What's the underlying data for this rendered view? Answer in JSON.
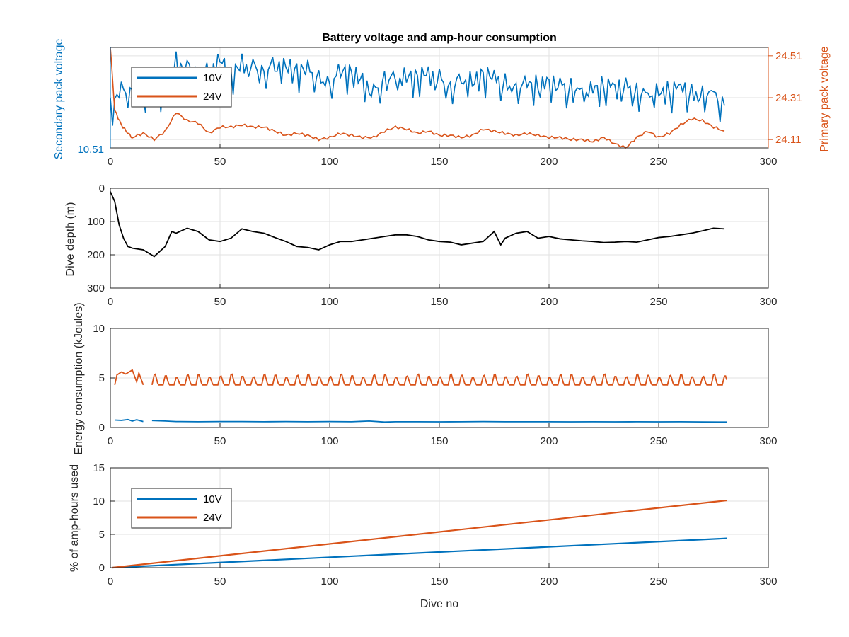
{
  "figure_title": "Battery voltage and amp-hour consumption",
  "colors": {
    "blue": "#0072BD",
    "orange": "#D95319",
    "black": "#000000",
    "grid": "#e2e2e2",
    "axis": "#262626"
  },
  "chart_data": [
    {
      "type": "line",
      "title": "Battery voltage and amp-hour consumption",
      "xlabel": "",
      "xlim": [
        0,
        300
      ],
      "xticks": [
        "0",
        "50",
        "100",
        "150",
        "200",
        "250",
        "300"
      ],
      "left_axis": {
        "label": "Secondary pack voltage",
        "tick_label": "10.51",
        "color": "#0072BD",
        "ylim": [
          10.51,
          10.56
        ]
      },
      "right_axis": {
        "label": "Primary pack voltage",
        "ticks": [
          "24.11",
          "24.31",
          "24.51"
        ],
        "color": "#D95319",
        "ylim": [
          24.07,
          24.55
        ]
      },
      "legend": {
        "placement": "top-left",
        "entries": [
          "10V",
          "24V"
        ]
      },
      "grid": true,
      "series": [
        {
          "name": "10V",
          "axis": "left",
          "x": [
            0,
            5,
            10,
            15,
            20,
            25,
            30,
            35,
            40,
            45,
            50,
            55,
            60,
            65,
            70,
            75,
            80,
            85,
            90,
            95,
            100,
            105,
            110,
            115,
            120,
            125,
            130,
            135,
            140,
            145,
            150,
            155,
            160,
            165,
            170,
            175,
            180,
            185,
            190,
            195,
            200,
            205,
            210,
            215,
            220,
            225,
            230,
            235,
            240,
            245,
            250,
            255,
            260,
            265,
            270,
            275,
            280
          ],
          "y": [
            10.531,
            10.541,
            10.541,
            10.539,
            10.538,
            10.541,
            10.554,
            10.552,
            10.55,
            10.549,
            10.554,
            10.546,
            10.553,
            10.553,
            10.551,
            10.552,
            10.551,
            10.549,
            10.55,
            10.548,
            10.545,
            10.549,
            10.548,
            10.544,
            10.538,
            10.548,
            10.547,
            10.546,
            10.546,
            10.547,
            10.546,
            10.543,
            10.546,
            10.544,
            10.547,
            10.545,
            10.544,
            10.543,
            10.544,
            10.542,
            10.543,
            10.541,
            10.542,
            10.541,
            10.541,
            10.542,
            10.54,
            10.541,
            10.54,
            10.539,
            10.54,
            10.539,
            10.54,
            10.538,
            10.539,
            10.54,
            10.531
          ]
        },
        {
          "name": "24V",
          "axis": "right",
          "x": [
            0,
            2,
            5,
            8,
            10,
            15,
            20,
            25,
            30,
            35,
            40,
            45,
            50,
            55,
            60,
            65,
            70,
            75,
            80,
            85,
            90,
            95,
            100,
            105,
            110,
            115,
            120,
            125,
            130,
            135,
            140,
            145,
            150,
            155,
            160,
            165,
            170,
            175,
            180,
            185,
            190,
            195,
            200,
            205,
            210,
            215,
            220,
            225,
            230,
            235,
            240,
            245,
            250,
            255,
            260,
            265,
            270,
            275,
            280
          ],
          "y": [
            24.55,
            24.25,
            24.18,
            24.14,
            24.12,
            24.14,
            24.11,
            24.15,
            24.24,
            24.2,
            24.19,
            24.14,
            24.17,
            24.17,
            24.18,
            24.17,
            24.17,
            24.15,
            24.13,
            24.14,
            24.13,
            24.11,
            24.12,
            24.14,
            24.13,
            24.12,
            24.12,
            24.15,
            24.17,
            24.16,
            24.14,
            24.15,
            24.13,
            24.13,
            24.12,
            24.13,
            24.16,
            24.15,
            24.14,
            24.13,
            24.14,
            24.13,
            24.12,
            24.12,
            24.11,
            24.11,
            24.1,
            24.12,
            24.09,
            24.07,
            24.12,
            24.15,
            24.12,
            24.14,
            24.18,
            24.21,
            24.2,
            24.17,
            24.15
          ]
        }
      ]
    },
    {
      "type": "line",
      "title": "",
      "xlabel": "",
      "ylabel": "Dive depth (m)",
      "xlim": [
        0,
        300
      ],
      "ylim": [
        0,
        300
      ],
      "y_reversed": true,
      "xticks": [
        "0",
        "50",
        "100",
        "150",
        "200",
        "250",
        "300"
      ],
      "yticks": [
        "0",
        "100",
        "200",
        "300"
      ],
      "grid": true,
      "series": [
        {
          "color": "#000000",
          "x": [
            0,
            2,
            4,
            6,
            8,
            10,
            15,
            20,
            25,
            28,
            30,
            35,
            40,
            45,
            50,
            55,
            60,
            65,
            70,
            75,
            80,
            85,
            90,
            95,
            100,
            105,
            110,
            115,
            120,
            125,
            130,
            135,
            140,
            145,
            150,
            155,
            160,
            165,
            170,
            175,
            178,
            180,
            185,
            190,
            195,
            200,
            205,
            210,
            215,
            220,
            225,
            230,
            235,
            240,
            245,
            250,
            255,
            260,
            265,
            270,
            275,
            280
          ],
          "y": [
            10,
            40,
            110,
            150,
            175,
            180,
            185,
            205,
            175,
            130,
            135,
            120,
            130,
            155,
            160,
            150,
            122,
            130,
            135,
            148,
            160,
            175,
            178,
            185,
            170,
            160,
            160,
            155,
            150,
            145,
            140,
            140,
            145,
            155,
            160,
            162,
            170,
            165,
            160,
            130,
            170,
            150,
            135,
            130,
            150,
            145,
            152,
            155,
            158,
            160,
            163,
            162,
            160,
            162,
            155,
            148,
            145,
            140,
            135,
            128,
            120,
            122
          ]
        }
      ]
    },
    {
      "type": "line",
      "title": "",
      "xlabel": "",
      "ylabel": "Energy consumption (kJoules)",
      "xlim": [
        0,
        300
      ],
      "ylim": [
        0,
        10
      ],
      "xticks": [
        "0",
        "50",
        "100",
        "150",
        "200",
        "250",
        "300"
      ],
      "yticks": [
        "0",
        "5",
        "10"
      ],
      "grid": true,
      "series": [
        {
          "name": "10V",
          "color": "#0072BD",
          "segments": [
            {
              "x": [
                2,
                5,
                8,
                10,
                12,
                15
              ],
              "y": [
                0.75,
                0.72,
                0.8,
                0.65,
                0.78,
                0.6
              ]
            },
            {
              "x": [
                19,
                25,
                30,
                40,
                50,
                60,
                70,
                80,
                90,
                100,
                110,
                118,
                125,
                130,
                140,
                150,
                160,
                170,
                180,
                190,
                200,
                210,
                220,
                230,
                240,
                250,
                260,
                270,
                281
              ],
              "y": [
                0.7,
                0.65,
                0.6,
                0.58,
                0.6,
                0.6,
                0.58,
                0.6,
                0.58,
                0.6,
                0.58,
                0.65,
                0.55,
                0.58,
                0.58,
                0.57,
                0.58,
                0.6,
                0.58,
                0.58,
                0.58,
                0.57,
                0.58,
                0.57,
                0.58,
                0.57,
                0.58,
                0.56,
                0.55
              ]
            }
          ]
        },
        {
          "name": "24V",
          "color": "#D95319",
          "base": 4.3,
          "peak": 5.6,
          "period": 5,
          "segments": [
            {
              "x": [
                2,
                3,
                5,
                7,
                10,
                12,
                13,
                15
              ],
              "y": [
                4.3,
                5.3,
                5.6,
                5.4,
                5.8,
                4.6,
                5.5,
                4.3
              ]
            },
            {
              "x_start": 19,
              "x_end": 281
            }
          ]
        }
      ]
    },
    {
      "type": "line",
      "title": "",
      "xlabel": "Dive no",
      "ylabel": "% of amp-hours used",
      "xlim": [
        0,
        300
      ],
      "ylim": [
        0,
        15
      ],
      "xticks": [
        "0",
        "50",
        "100",
        "150",
        "200",
        "250",
        "300"
      ],
      "yticks": [
        "0",
        "5",
        "10",
        "15"
      ],
      "legend": {
        "placement": "top-left",
        "entries": [
          "10V",
          "24V"
        ]
      },
      "grid": true,
      "series": [
        {
          "name": "10V",
          "color": "#0072BD",
          "x": [
            1,
            281
          ],
          "y": [
            0,
            4.4
          ]
        },
        {
          "name": "24V",
          "color": "#D95319",
          "x": [
            1,
            281
          ],
          "y": [
            0,
            10.1
          ]
        }
      ]
    }
  ]
}
